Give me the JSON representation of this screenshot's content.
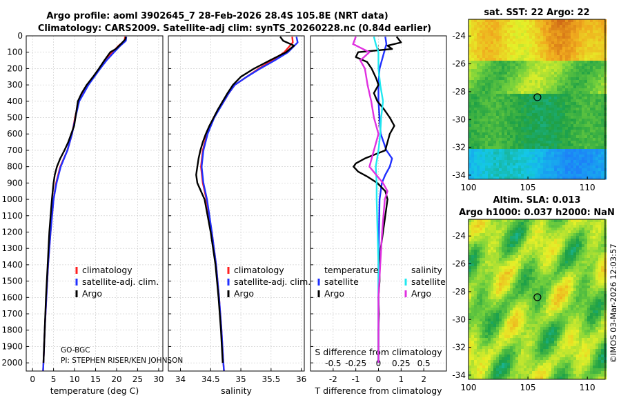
{
  "title_line1": "Argo profile: aoml 3902645_7 28-Feb-2026 28.4S 105.8E (NRT data)",
  "title_line2": "Climatology: CARS2009. Satellite-adj clim: synTS_20260228.nc (0.84d earlier)",
  "pi_text_1": "GO-BGC",
  "pi_text_2": "PI: STEPHEN RISER/KEN JOHNSON",
  "credit": "©IMOS 03-Mar-2026 12:03:57",
  "colors": {
    "clim": "#ff2020",
    "sat": "#2030ff",
    "argo": "#000000",
    "sal_sat": "#20e8f0",
    "sal_argo": "#e030e0"
  },
  "chart_data": [
    {
      "type": "line",
      "name": "temperature",
      "xlabel": "temperature (deg C)",
      "ylabel": "",
      "xlim": [
        -1.5,
        31
      ],
      "ylim": [
        2050,
        0
      ],
      "xticks": [
        "0",
        "5",
        "10",
        "15",
        "20",
        "25",
        "30"
      ],
      "yticks": [
        "0",
        "100",
        "200",
        "300",
        "400",
        "500",
        "600",
        "700",
        "800",
        "900",
        "1000",
        "1100",
        "1200",
        "1300",
        "1400",
        "1500",
        "1600",
        "1700",
        "1800",
        "1900",
        "2000"
      ],
      "legend": [
        "climatology",
        "satellite-adj. clim.",
        "Argo"
      ],
      "series": [
        {
          "name": "climatology",
          "pressure": [
            5,
            30,
            60,
            100,
            150,
            200,
            250,
            300,
            350,
            400,
            500,
            600,
            700,
            800,
            900,
            1000,
            1200,
            1400,
            1600,
            1800,
            2000,
            2050
          ],
          "values": [
            22.0,
            21.9,
            20.5,
            19.0,
            17.3,
            16.0,
            14.6,
            13.2,
            12.1,
            11.0,
            10.1,
            9.4,
            8.3,
            6.6,
            5.6,
            5.0,
            4.3,
            3.7,
            3.3,
            2.9,
            2.6,
            2.5
          ]
        },
        {
          "name": "satellite-adj. clim.",
          "pressure": [
            5,
            30,
            60,
            100,
            150,
            200,
            250,
            300,
            350,
            400,
            500,
            600,
            700,
            800,
            900,
            1000,
            1200,
            1400,
            1600,
            1800,
            2000,
            2050
          ],
          "values": [
            22.3,
            22.2,
            20.9,
            19.4,
            17.6,
            16.1,
            14.7,
            13.3,
            12.2,
            11.1,
            10.2,
            9.4,
            8.3,
            6.7,
            5.7,
            5.0,
            4.3,
            3.7,
            3.3,
            2.9,
            2.6,
            2.5
          ]
        },
        {
          "name": "Argo",
          "pressure": [
            5,
            20,
            50,
            80,
            100,
            150,
            200,
            250,
            300,
            350,
            400,
            450,
            500,
            550,
            600,
            650,
            700,
            750,
            800,
            850,
            900,
            1000,
            1200,
            1400,
            1600,
            1800,
            2000
          ],
          "values": [
            22.2,
            22.1,
            21.0,
            19.8,
            18.5,
            17.1,
            15.8,
            14.4,
            12.9,
            11.7,
            10.8,
            10.5,
            10.2,
            9.9,
            9.2,
            8.5,
            7.6,
            6.6,
            5.8,
            5.3,
            5.0,
            4.6,
            4.0,
            3.6,
            3.2,
            2.9,
            2.6
          ]
        }
      ]
    },
    {
      "type": "line",
      "name": "salinity",
      "xlabel": "salinity",
      "ylabel": "",
      "xlim": [
        33.8,
        36.05
      ],
      "ylim": [
        2050,
        0
      ],
      "xticks": [
        "34",
        "34.5",
        "35",
        "35.5",
        "36"
      ],
      "legend": [
        "climatology",
        "satellite-adj. clim.",
        "Argo"
      ],
      "series": [
        {
          "name": "climatology",
          "pressure": [
            5,
            40,
            100,
            150,
            200,
            250,
            300,
            350,
            400,
            500,
            600,
            700,
            800,
            900,
            1000,
            1200,
            1400,
            1600,
            1800,
            2000,
            2050
          ],
          "values": [
            35.85,
            35.86,
            35.72,
            35.52,
            35.3,
            35.1,
            34.9,
            34.8,
            34.72,
            34.55,
            34.44,
            34.37,
            34.34,
            34.37,
            34.43,
            34.52,
            34.59,
            34.64,
            34.68,
            34.71,
            34.72
          ]
        },
        {
          "name": "satellite-adj. clim.",
          "pressure": [
            5,
            40,
            100,
            150,
            200,
            250,
            300,
            350,
            400,
            500,
            600,
            700,
            800,
            900,
            1000,
            1200,
            1400,
            1600,
            1800,
            2000,
            2050
          ],
          "values": [
            35.92,
            35.94,
            35.78,
            35.56,
            35.32,
            35.1,
            34.9,
            34.8,
            34.72,
            34.56,
            34.45,
            34.38,
            34.35,
            34.38,
            34.44,
            34.52,
            34.59,
            34.64,
            34.68,
            34.71,
            34.72
          ]
        },
        {
          "name": "Argo",
          "pressure": [
            5,
            30,
            60,
            100,
            150,
            200,
            250,
            300,
            350,
            400,
            450,
            500,
            550,
            600,
            650,
            700,
            750,
            800,
            850,
            900,
            1000,
            1200,
            1400,
            1600,
            1800,
            2000
          ],
          "values": [
            35.65,
            35.7,
            35.88,
            35.75,
            35.48,
            35.22,
            35.0,
            34.87,
            34.78,
            34.7,
            34.62,
            34.55,
            34.48,
            34.42,
            34.37,
            34.33,
            34.3,
            34.28,
            34.26,
            34.28,
            34.4,
            34.5,
            34.58,
            34.63,
            34.67,
            34.7
          ]
        }
      ]
    },
    {
      "type": "line",
      "name": "difference",
      "xlabel": "T difference from climatology",
      "xlabel_top": "S difference from climatology",
      "xlim": [
        -3,
        3
      ],
      "ylim": [
        2050,
        0
      ],
      "xticks": [
        "-2",
        "-1",
        "0",
        "1",
        "2"
      ],
      "xticks_top": [
        "-0.5",
        "-0.25",
        "0",
        "0.25",
        "0.5"
      ],
      "legend_temp_title": "temperature",
      "legend_sal_title": "salinity",
      "legend_items": [
        "satellite",
        "Argo"
      ],
      "series": [
        {
          "name": "temperature satellite",
          "pressure": [
            5,
            50,
            100,
            200,
            300,
            400,
            500,
            600,
            700,
            750,
            800,
            850,
            900,
            1000,
            1200,
            1400,
            1600,
            1800,
            2000
          ],
          "values": [
            0.3,
            0.35,
            0.25,
            0.05,
            0.0,
            0.0,
            0.05,
            0.1,
            0.35,
            0.6,
            0.5,
            0.3,
            0.15,
            0.05,
            0.02,
            0.0,
            0.0,
            0.0,
            0.0
          ]
        },
        {
          "name": "temperature Argo",
          "pressure": [
            5,
            40,
            60,
            80,
            100,
            130,
            160,
            200,
            260,
            300,
            350,
            400,
            450,
            500,
            550,
            600,
            650,
            700,
            750,
            780,
            800,
            830,
            860,
            900,
            950,
            1000,
            1100,
            1200,
            1300,
            1400,
            1500,
            1600,
            1700,
            1800,
            1900,
            2000
          ],
          "values": [
            0.8,
            1.0,
            0.4,
            0.6,
            -0.9,
            -1.0,
            -0.5,
            -0.3,
            -0.1,
            0.0,
            -0.2,
            -0.05,
            0.25,
            0.5,
            0.7,
            0.5,
            0.4,
            0.3,
            -0.6,
            -1.0,
            -1.1,
            -0.9,
            -0.5,
            -0.05,
            0.3,
            0.4,
            0.3,
            0.2,
            0.1,
            0.05,
            0.05,
            0.0,
            0.02,
            0.0,
            0.0,
            0.0
          ]
        },
        {
          "name": "salinity satellite",
          "pressure": [
            5,
            50,
            100,
            200,
            300,
            400,
            500,
            600,
            700,
            800,
            900,
            1000,
            1200,
            1400,
            1600,
            1800,
            2000
          ],
          "values": [
            -0.05,
            -0.03,
            0.0,
            0.0,
            0.02,
            0.05,
            0.03,
            0.02,
            0.0,
            -0.03,
            -0.02,
            -0.02,
            -0.01,
            0.0,
            0.0,
            0.0,
            0.0
          ]
        },
        {
          "name": "salinity Argo",
          "pressure": [
            5,
            50,
            100,
            150,
            200,
            300,
            400,
            500,
            600,
            700,
            800,
            900,
            950,
            1000,
            1200,
            1400,
            1600,
            1800,
            2000
          ],
          "values": [
            -0.25,
            -0.28,
            -0.1,
            -0.2,
            -0.15,
            -0.12,
            -0.08,
            -0.05,
            0.0,
            -0.05,
            -0.1,
            0.05,
            0.1,
            0.07,
            0.04,
            0.02,
            0.0,
            0.0,
            0.0
          ]
        }
      ]
    },
    {
      "type": "heatmap",
      "name": "sst_map",
      "title": "sat. SST: 22 Argo: 22",
      "xlim": [
        100,
        111.5
      ],
      "ylim": [
        -34.3,
        -22.8
      ],
      "xticks": [
        "100",
        "105",
        "110"
      ],
      "yticks": [
        "-24",
        "-26",
        "-28",
        "-30",
        "-32",
        "-34"
      ],
      "marker": {
        "lon": 105.8,
        "lat": -28.4
      }
    },
    {
      "type": "heatmap",
      "name": "sla_map",
      "title": "Altim. SLA: 0.013",
      "title2": "Argo h1000: 0.037 h2000: NaN",
      "xlim": [
        100,
        111.5
      ],
      "ylim": [
        -34.3,
        -22.8
      ],
      "xticks": [
        "100",
        "105",
        "110"
      ],
      "yticks": [
        "-24",
        "-26",
        "-28",
        "-30",
        "-32",
        "-34"
      ],
      "marker": {
        "lon": 105.8,
        "lat": -28.4
      }
    }
  ]
}
